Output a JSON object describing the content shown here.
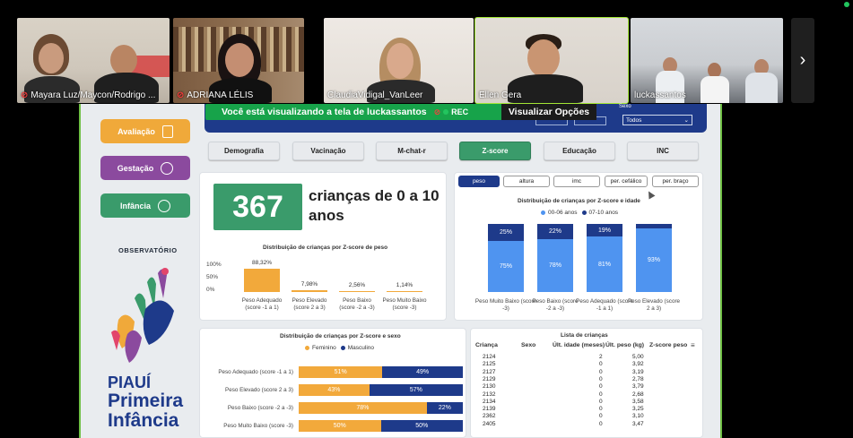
{
  "meeting": {
    "top_status": [
      "",
      ""
    ],
    "participants": [
      {
        "name": "Mayara Luz/Maycon/Rodrigo ...",
        "muted": true
      },
      {
        "name": "ADRIANA LÉLIS",
        "muted": true
      },
      {
        "name": "ClaudiaVidigal_VanLeer",
        "muted": false
      },
      {
        "name": "Ellen Gera",
        "muted": false,
        "active": true
      },
      {
        "name": "luckassantos",
        "muted": false
      }
    ],
    "next_icon": "chevron-right-icon"
  },
  "banner": {
    "text": "Você está visualizando a tela de  luckassantos",
    "rec": "REC",
    "view_options": "Visualizar Opções"
  },
  "dashboard": {
    "sexo_label": "Sexo",
    "sexo_value": "Todos",
    "nav": [
      {
        "label": "Avaliação",
        "color": "#f0a93a",
        "icon": "clipboard-icon"
      },
      {
        "label": "Gestação",
        "color": "#8b4a9e",
        "icon": "baby-icon"
      },
      {
        "label": "Infância",
        "color": "#3a9b6b",
        "icon": "child-face-icon"
      }
    ],
    "observatorio": "OBSERVATÓRIO",
    "brand": [
      "PIAUÍ",
      "Primeira",
      "Infância"
    ],
    "tabs": [
      "Demografia",
      "Vacinação",
      "M-chat-r",
      "Z-score",
      "Educação",
      "INC"
    ],
    "active_tab": "Z-score",
    "kpi": {
      "value": "367",
      "label": "crianças de 0 a 10 anos"
    },
    "pills": [
      "peso",
      "altura",
      "imc",
      "per. cefálico",
      "per. braço"
    ],
    "active_pill": "peso",
    "colors": {
      "orange": "#f2a93b",
      "navy": "#1e3a8a",
      "light_blue": "#4f94f0",
      "green": "#3a9b6b"
    }
  },
  "chart_data": [
    {
      "type": "bar",
      "title": "Distribuição de crianças por Z-score de peso",
      "categories": [
        "Peso Adequado (score -1 a 1)",
        "Peso Elevado (score 2 a 3)",
        "Peso Baixo (score -2 a -3)",
        "Peso Muito Baixo (score -3)"
      ],
      "values": [
        88.32,
        7.98,
        2.56,
        1.14
      ],
      "value_labels": [
        "88,32%",
        "7,98%",
        "2,56%",
        "1,14%"
      ],
      "yticks": [
        "100%",
        "50%",
        "0%"
      ],
      "ylim": [
        0,
        100
      ]
    },
    {
      "type": "bar",
      "stacked": true,
      "percent": true,
      "title": "Distribuição de crianças por Z-score e idade",
      "categories": [
        "Peso Muito Baixo (score -3)",
        "Peso Baixo (score -2 a -3)",
        "Peso Adequado (score -1 a 1)",
        "Peso Elevado (score 2 a 3)"
      ],
      "series": [
        {
          "name": "00-06 anos",
          "values": [
            75,
            78,
            81,
            93
          ],
          "labels": [
            "75%",
            "78%",
            "81%",
            "93%"
          ]
        },
        {
          "name": "07-10 anos",
          "values": [
            25,
            22,
            19,
            7
          ],
          "labels": [
            "25%",
            "22%",
            "19%",
            ""
          ]
        }
      ],
      "legend": "top"
    },
    {
      "type": "bar",
      "orientation": "horizontal",
      "stacked": true,
      "percent": true,
      "title": "Distribuição de crianças por Z-score e sexo",
      "categories": [
        "Peso Adequado (score -1 a 1)",
        "Peso Elevado (score 2 a 3)",
        "Peso Baixo (score -2 a -3)",
        "Peso Muito Baixo (score -3)"
      ],
      "series": [
        {
          "name": "Feminino",
          "values": [
            51,
            43,
            78,
            50
          ],
          "labels": [
            "51%",
            "43%",
            "78%",
            "50%"
          ]
        },
        {
          "name": "Masculino",
          "values": [
            49,
            57,
            22,
            50
          ],
          "labels": [
            "49%",
            "57%",
            "22%",
            "50%"
          ]
        }
      ],
      "legend": "top"
    },
    {
      "type": "table",
      "title": "Lista de crianças",
      "columns": [
        "Criança",
        "Sexo",
        "Últ. idade (meses)",
        "Últ. peso (kg)",
        "Z-score peso"
      ],
      "rows": [
        [
          "2124",
          "",
          "2",
          "5,00",
          ""
        ],
        [
          "2125",
          "",
          "0",
          "3,92",
          ""
        ],
        [
          "2127",
          "",
          "0",
          "3,19",
          ""
        ],
        [
          "2129",
          "",
          "0",
          "2,78",
          ""
        ],
        [
          "2130",
          "",
          "0",
          "3,79",
          ""
        ],
        [
          "2132",
          "",
          "0",
          "2,68",
          ""
        ],
        [
          "2134",
          "",
          "0",
          "3,58",
          ""
        ],
        [
          "2139",
          "",
          "0",
          "3,25",
          ""
        ],
        [
          "2362",
          "",
          "0",
          "3,10",
          ""
        ],
        [
          "2405",
          "",
          "0",
          "3,47",
          ""
        ]
      ]
    }
  ]
}
